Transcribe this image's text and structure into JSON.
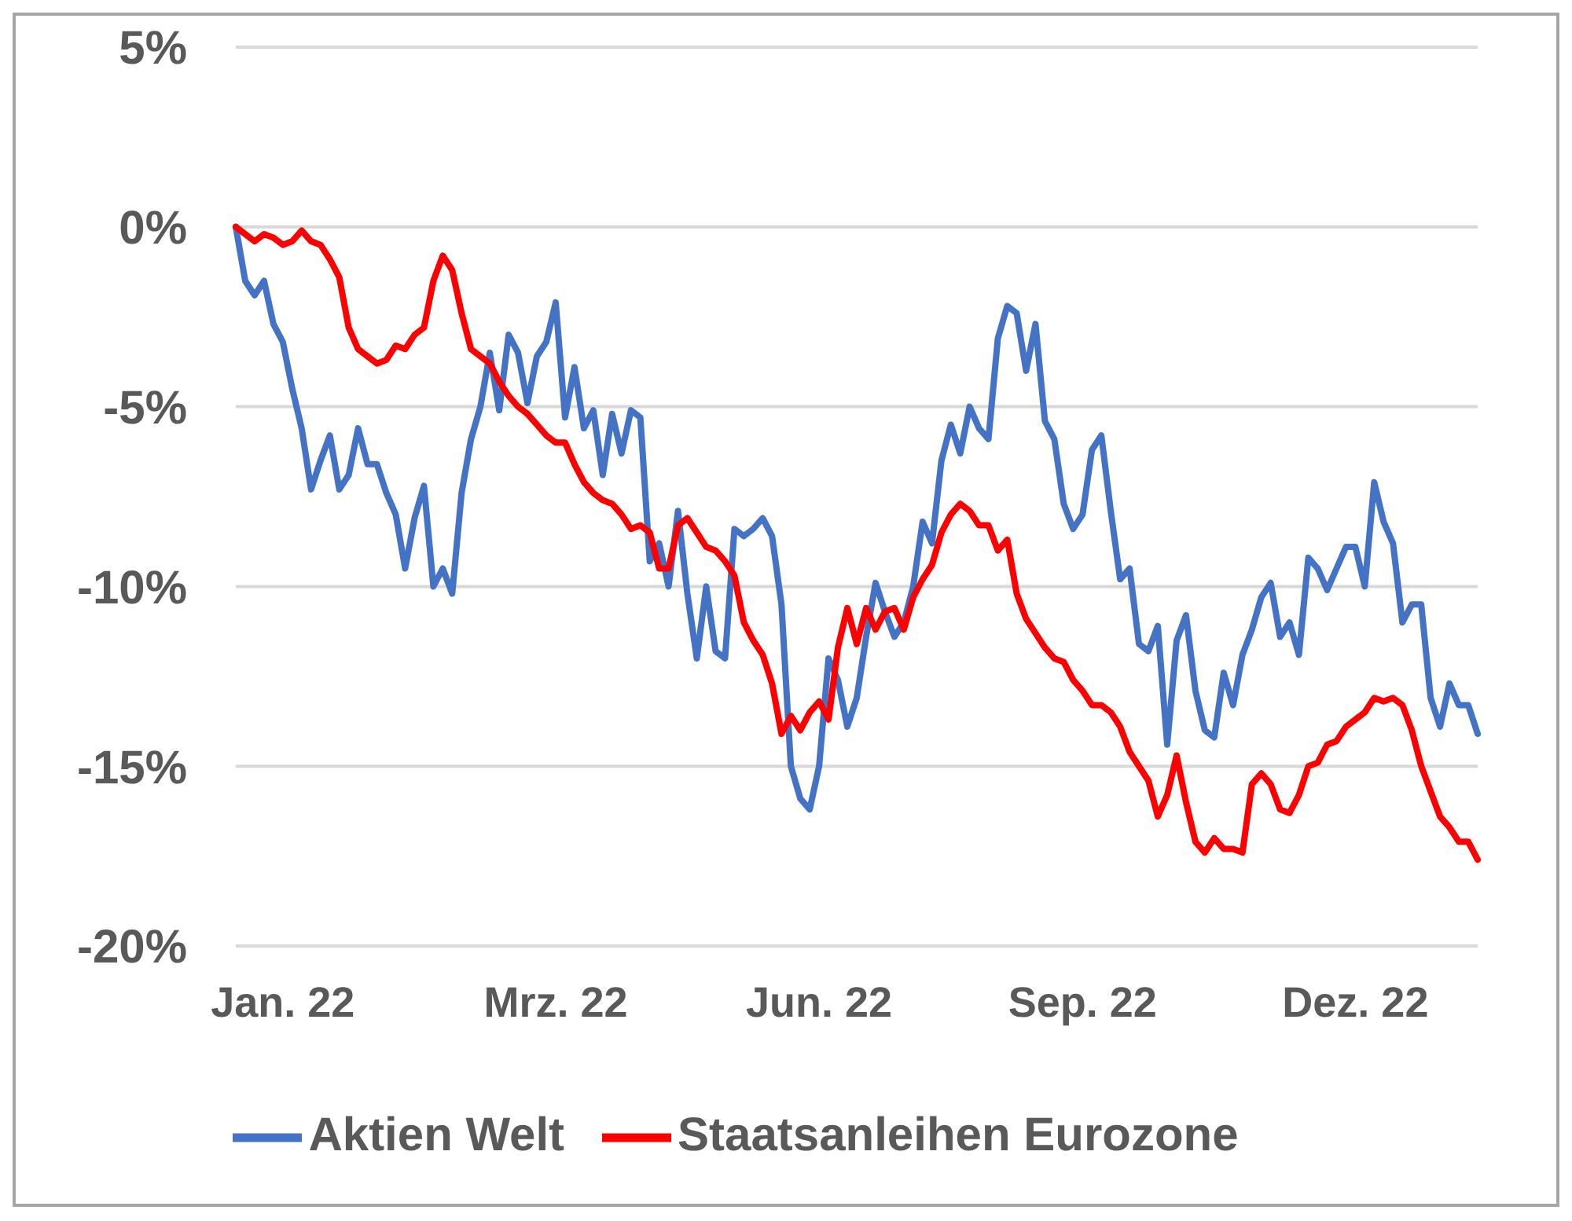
{
  "chart_data": {
    "type": "line",
    "categories": [
      null,
      null,
      null,
      null,
      null,
      "Jan. 22",
      null,
      null,
      null,
      null,
      null,
      null,
      null,
      null,
      null,
      null,
      null,
      null,
      null,
      null,
      null,
      null,
      null,
      null,
      null,
      null,
      null,
      null,
      null,
      null,
      null,
      null,
      null,
      null,
      "Mrz. 22",
      null,
      null,
      null,
      null,
      null,
      null,
      null,
      null,
      null,
      null,
      null,
      null,
      null,
      null,
      null,
      null,
      null,
      null,
      null,
      null,
      null,
      null,
      null,
      null,
      null,
      null,
      null,
      "Jun. 22",
      null,
      null,
      null,
      null,
      null,
      null,
      null,
      null,
      null,
      null,
      null,
      null,
      null,
      null,
      null,
      null,
      null,
      null,
      null,
      null,
      null,
      null,
      null,
      null,
      null,
      null,
      null,
      "Sep. 22",
      null,
      null,
      null,
      null,
      null,
      null,
      null,
      null,
      null,
      null,
      null,
      null,
      null,
      null,
      null,
      null,
      null,
      null,
      null,
      null,
      null,
      null,
      null,
      null,
      null,
      null,
      null,
      null,
      "Dez. 22",
      null,
      null,
      null,
      null,
      null,
      null,
      null,
      null,
      null,
      null,
      null,
      null,
      null
    ],
    "ylim": [
      -20,
      5
    ],
    "yticks": [
      {
        "value": 5,
        "label": "5%"
      },
      {
        "value": 0,
        "label": "0%"
      },
      {
        "value": -5,
        "label": "-5%"
      },
      {
        "value": -10,
        "label": "-10%"
      },
      {
        "value": -15,
        "label": "-15%"
      },
      {
        "value": -20,
        "label": "-20%"
      }
    ],
    "grid": "y",
    "legend": "bottom",
    "marker": "none",
    "line_style": "solid",
    "series": [
      {
        "name": "Aktien Welt",
        "color": "#4472c4",
        "values": [
          0,
          -1.5,
          -1.9,
          -1.5,
          -2.7,
          -3.2,
          -4.5,
          -5.6,
          -7.3,
          -6.5,
          -5.8,
          -7.3,
          -6.9,
          -5.6,
          -6.6,
          -6.6,
          -7.4,
          -8.0,
          -9.5,
          -8.1,
          -7.2,
          -10.0,
          -9.5,
          -10.2,
          -7.4,
          -5.9,
          -5.0,
          -3.5,
          -5.1,
          -3.0,
          -3.5,
          -4.9,
          -3.6,
          -3.2,
          -2.1,
          -5.3,
          -3.9,
          -5.6,
          -5.1,
          -6.9,
          -5.2,
          -6.3,
          -5.1,
          -5.3,
          -9.3,
          -8.8,
          -10.0,
          -7.9,
          -10.2,
          -12.0,
          -10.0,
          -11.8,
          -12.0,
          -8.4,
          -8.6,
          -8.4,
          -8.1,
          -8.6,
          -10.5,
          -15.0,
          -15.9,
          -16.2,
          -15.0,
          -12.0,
          -12.6,
          -13.9,
          -13.1,
          -11.4,
          -9.9,
          -10.7,
          -11.4,
          -11.0,
          -10.0,
          -8.2,
          -8.8,
          -6.5,
          -5.5,
          -6.3,
          -5.0,
          -5.6,
          -5.9,
          -3.1,
          -2.2,
          -2.4,
          -4.0,
          -2.7,
          -5.4,
          -5.9,
          -7.7,
          -8.4,
          -8.0,
          -6.2,
          -5.8,
          -7.9,
          -9.8,
          -9.5,
          -11.6,
          -11.8,
          -11.1,
          -14.4,
          -11.5,
          -10.8,
          -12.9,
          -14.0,
          -14.2,
          -12.4,
          -13.3,
          -11.9,
          -11.2,
          -10.3,
          -9.9,
          -11.4,
          -11.0,
          -11.9,
          -9.2,
          -9.5,
          -10.1,
          -9.5,
          -8.9,
          -8.9,
          -10.0,
          -7.1,
          -8.2,
          -8.8,
          -11.0,
          -10.5,
          -10.5,
          -13.1,
          -13.9,
          -12.7,
          -13.3,
          -13.3,
          -14.1
        ]
      },
      {
        "name": "Staatsanleihen Eurozone",
        "color": "#ff0000",
        "values": [
          0,
          -0.2,
          -0.4,
          -0.2,
          -0.3,
          -0.5,
          -0.4,
          -0.1,
          -0.4,
          -0.5,
          -0.9,
          -1.4,
          -2.8,
          -3.4,
          -3.6,
          -3.8,
          -3.7,
          -3.3,
          -3.4,
          -3.0,
          -2.8,
          -1.5,
          -0.8,
          -1.2,
          -2.4,
          -3.4,
          -3.6,
          -3.8,
          -4.3,
          -4.7,
          -5.0,
          -5.2,
          -5.5,
          -5.8,
          -6.0,
          -6.0,
          -6.6,
          -7.1,
          -7.4,
          -7.6,
          -7.7,
          -8.0,
          -8.4,
          -8.3,
          -8.5,
          -9.5,
          -9.5,
          -8.3,
          -8.1,
          -8.5,
          -8.9,
          -9.0,
          -9.3,
          -9.7,
          -11.0,
          -11.5,
          -11.9,
          -12.7,
          -14.1,
          -13.6,
          -14.0,
          -13.5,
          -13.2,
          -13.7,
          -11.7,
          -10.6,
          -11.6,
          -10.6,
          -11.2,
          -10.7,
          -10.6,
          -11.2,
          -10.3,
          -9.8,
          -9.4,
          -8.5,
          -8.0,
          -7.7,
          -7.9,
          -8.3,
          -8.3,
          -9.0,
          -8.7,
          -10.2,
          -10.9,
          -11.3,
          -11.7,
          -12.0,
          -12.1,
          -12.6,
          -12.9,
          -13.3,
          -13.3,
          -13.5,
          -13.9,
          -14.6,
          -15.0,
          -15.4,
          -16.4,
          -15.8,
          -14.7,
          -16.0,
          -17.1,
          -17.4,
          -17.0,
          -17.3,
          -17.3,
          -17.4,
          -15.5,
          -15.2,
          -15.5,
          -16.2,
          -16.3,
          -15.8,
          -15.0,
          -14.9,
          -14.4,
          -14.3,
          -13.9,
          -13.7,
          -13.5,
          -13.1,
          -13.2,
          -13.1,
          -13.3,
          -14.0,
          -15.0,
          -15.7,
          -16.4,
          -16.7,
          -17.1,
          -17.1,
          -17.6
        ]
      }
    ]
  }
}
